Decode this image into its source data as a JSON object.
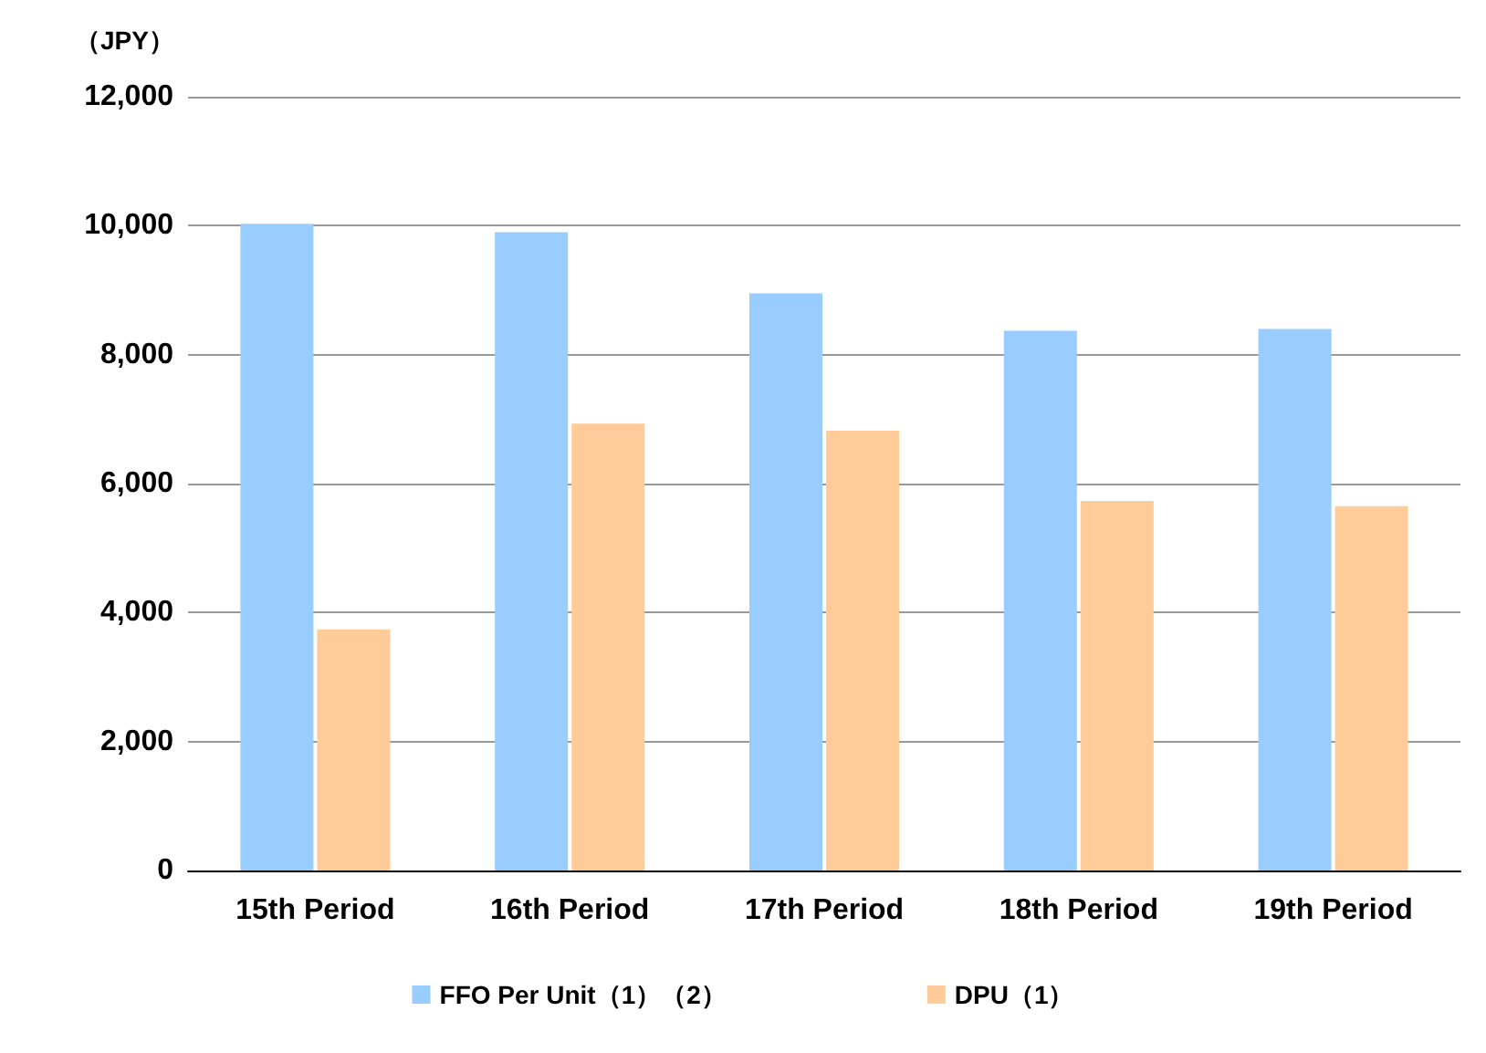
{
  "chart_data": {
    "type": "bar",
    "ylabel": "（JPY）",
    "categories": [
      "15th Period",
      "16th Period",
      "17th Period",
      "18th Period",
      "19th Period"
    ],
    "series": [
      {
        "name": "FFO Per Unit（1）（2）",
        "color": "#99ccff",
        "values": [
          10030,
          9900,
          8950,
          8370,
          8400
        ]
      },
      {
        "name": "DPU（1）",
        "color": "#ffcc99",
        "values": [
          3740,
          6930,
          6820,
          5730,
          5650
        ]
      }
    ],
    "ylim": [
      0,
      12000
    ],
    "yticks": [
      0,
      {
        "value": 2000,
        "label": "2,000"
      },
      {
        "value": 4000,
        "label": "4,000"
      },
      {
        "value": 6000,
        "label": "6,000"
      },
      {
        "value": 8000,
        "label": "8,000"
      },
      {
        "value": 10000,
        "label": "10,000"
      },
      {
        "value": 12000,
        "label": "12,000"
      }
    ],
    "grid": "y",
    "legend": "bottom"
  }
}
